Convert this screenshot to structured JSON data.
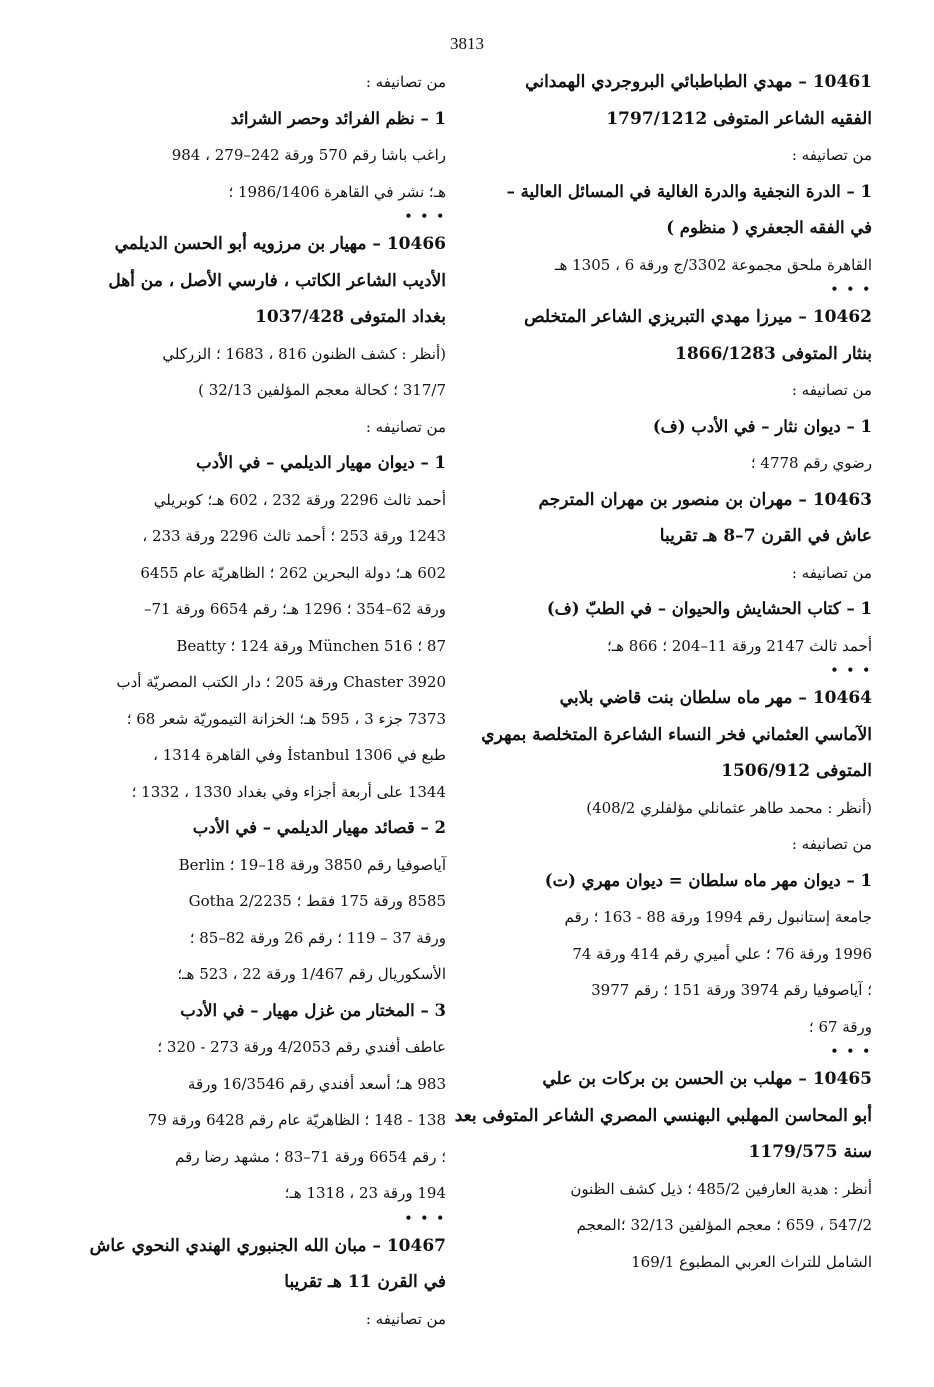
{
  "page_number": "3813",
  "columns": [
    [
      {
        "heading": "10461 – مهدي الطباطبائي البروجردي الهمداني"
      },
      {
        "heading": "الفقيه الشاعر المتوفى 1797/1212"
      },
      {
        "label": "من تصانيفه :"
      },
      {
        "work": "1 – الدرة النجفية والدرة الغالية في المسائل العالية –"
      },
      {
        "work": "في الفقه الجعفري ( منظوم )"
      },
      {
        "text": "القاهرة ملحق مجموعة 3302/ج ورقة 6 ، 1305 هـ"
      },
      {
        "separator": "• • •"
      },
      {
        "heading": "10462 – ميرزا مهدي التبريزي الشاعر المتخلص"
      },
      {
        "heading": "بنثار المتوفى 1866/1283"
      },
      {
        "label": "من تصانيفه :"
      },
      {
        "work": "1 – ديوان نثار – في الأدب (ف)"
      },
      {
        "text": "رضوي رقم 4778 ؛"
      },
      {
        "heading": "10463 – مهران بن منصور بن مهران المترجم"
      },
      {
        "heading": "عاش في القرن 7–8 هـ تقريبا"
      },
      {
        "label": "من تصانيفه :"
      },
      {
        "work": "1 – كتاب الحشايش والحيوان – في الطبّ (ف)"
      },
      {
        "text": "أحمد ثالث 2147 ورقة 11–204 ؛ 866 هـ؛"
      },
      {
        "separator": "• • •"
      },
      {
        "heading": "10464 – مهر ماه سلطان بنت قاضي بلابي"
      },
      {
        "heading": "الآماسي العثماني فخر النساء الشاعرة المتخلصة بمهري"
      },
      {
        "heading": "المتوفى 1506/912"
      },
      {
        "text": "(أنظر : محمد طاهر عثمانلي مؤلفلري 408/2)"
      },
      {
        "label": "من تصانيفه :"
      },
      {
        "work": "1 – ديوان مهر ماه سلطان = ديوان مهري (ت)"
      },
      {
        "text": "جامعة إستانبول رقم 1994 ورقة 88 - 163 ؛ رقم"
      },
      {
        "text": "1996 ورقة 76 ؛ علي أميري رقم 414 ورقة 74"
      },
      {
        "text": "؛ آياصوفيا رقم 3974 ورقة 151 ؛ رقم 3977"
      },
      {
        "text": "ورقة 67 ؛"
      },
      {
        "separator": "• • •"
      },
      {
        "heading": "10465 – مهلب بن الحسن بن بركات بن علي"
      },
      {
        "heading": "أبو المحاسن المهلبي البهنسي المصري الشاعر المتوفى بعد"
      },
      {
        "heading": "سنة 1179/575"
      },
      {
        "text": "أنظر : هدية العارفين 485/2 ؛ ذيل كشف الظنون"
      },
      {
        "text": "547/2 ، 659 ؛ معجم المؤلفين 32/13 ؛المعجم"
      },
      {
        "text": "الشامل للتراث العربي المطبوع 169/1"
      }
    ],
    [
      {
        "label": "من تصانيفه :"
      },
      {
        "work": "1 – نظم الفرائد وحصر الشرائد"
      },
      {
        "text": "راغب باشا رقم 570 ورقة 242–279 ، 984"
      },
      {
        "text": "هـ؛ نشر في القاهرة 1986/1406 ؛"
      },
      {
        "separator": "• • •"
      },
      {
        "heading": "10466 – مهيار بن مرزويه أبو الحسن الديلمي"
      },
      {
        "heading": "الأديب الشاعر الكاتب ، فارسي الأصل ، من أهل"
      },
      {
        "heading": "بغداد المتوفى 1037/428"
      },
      {
        "text": "(أنظر : كشف الظنون 816 ، 1683 ؛ الزركلي"
      },
      {
        "text": "317/7 ؛ كحالة معجم المؤلفين 32/13 )"
      },
      {
        "label": "من تصانيفه :"
      },
      {
        "work": "1 – ديوان مهيار الديلمي – في الأدب"
      },
      {
        "text": "أحمد ثالث 2296 ورقة 232 ، 602 هـ؛ كوبريلي"
      },
      {
        "text": "1243 ورقة 253 ؛ أحمد ثالث 2296 ورقة 233 ،"
      },
      {
        "text": "602 هـ؛ دولة البحرين 262 ؛ الظاهريّة عام 6455"
      },
      {
        "text": "ورقة 62–354 ؛ 1296 هـ؛ رقم 6654 ورقة 71–"
      },
      {
        "text": "87 ؛ München 516 ورقة 124 ؛ Beatty"
      },
      {
        "text": "Chaster 3920 ورقة 205 ؛ دار الكتب المصريّة أدب"
      },
      {
        "text": "7373 جزء 3 ، 595 هـ؛ الخزانة التيموريّة شعر 68 ؛"
      },
      {
        "text": "طبع في İstanbul 1306 وفي القاهرة 1314 ،"
      },
      {
        "text": "1344 على أربعة أجزاء وفي بغداد 1330 ، 1332 ؛"
      },
      {
        "work": "2 – قصائد مهيار الديلمي – في الأدب"
      },
      {
        "text": "آياصوفيا رقم 3850 ورقة 18–19 ؛ Berlin"
      },
      {
        "text": "8585 ورقة 175 فقط ؛ Gotha 2/2235"
      },
      {
        "text": "ورقة 37 – 119 ؛ رقم 26 ورقة 82–85 ؛"
      },
      {
        "text": "الأسكوريال رقم 1/467 ورقة 22 ، 523 هـ؛"
      },
      {
        "work": "3 – المختار من غزل مهيار – في الأدب"
      },
      {
        "text": "عاطف أفندي رقم 4/2053 ورقة 273 - 320 ؛"
      },
      {
        "text": "983 هـ؛ أسعد أفندي رقم 16/3546 ورقة"
      },
      {
        "text": "138 - 148 ؛ الظاهريّة عام رقم 6428 ورقة 79"
      },
      {
        "text": "؛ رقم 6654 ورقة 71–83 ؛ مشهد رضا رقم"
      },
      {
        "text": "194 ورقة 23 ، 1318 هـ؛"
      },
      {
        "separator": "• • •"
      },
      {
        "heading": "10467 – مبان الله الجنبوري الهندي النحوي عاش"
      },
      {
        "heading": "في القرن 11 هـ تقريبا"
      },
      {
        "label": "من تصانيفه :"
      }
    ]
  ]
}
